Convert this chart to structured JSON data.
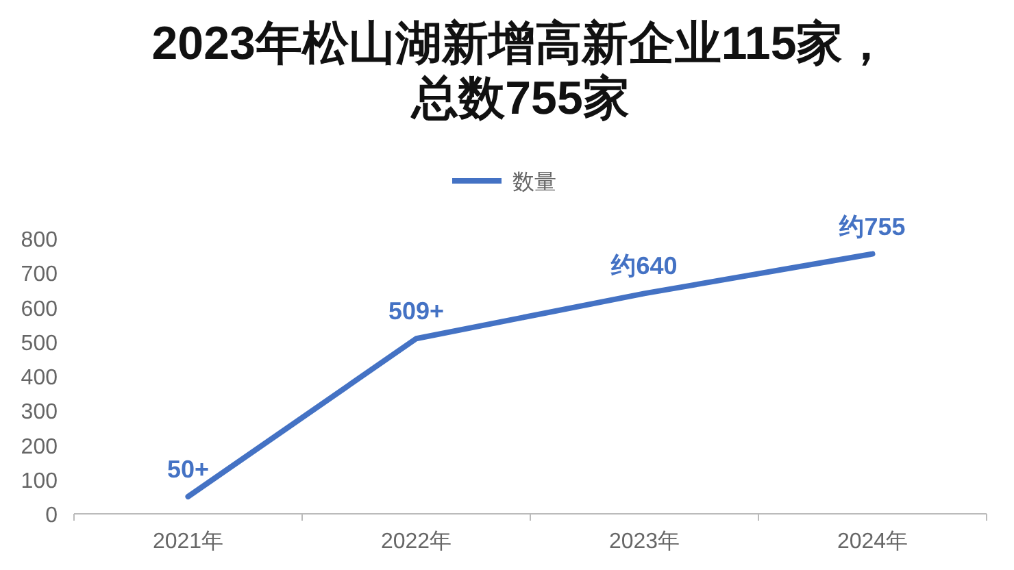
{
  "chart_data": {
    "type": "line",
    "title": "2023年松山湖新增高新企业115家，总数755家",
    "categories": [
      "2021年",
      "2022年",
      "2023年",
      "2024年"
    ],
    "series": [
      {
        "name": "数量",
        "color": "#4472c4",
        "values": [
          50,
          509,
          640,
          755
        ],
        "value_labels": [
          "50+",
          "509+",
          "约640",
          "约755"
        ]
      }
    ],
    "ylim": [
      0,
      800
    ],
    "yticks": [
      0,
      100,
      200,
      300,
      400,
      500,
      600,
      700,
      800
    ],
    "grid": false,
    "legend": "top",
    "marker": "none",
    "line_style": "solid"
  }
}
